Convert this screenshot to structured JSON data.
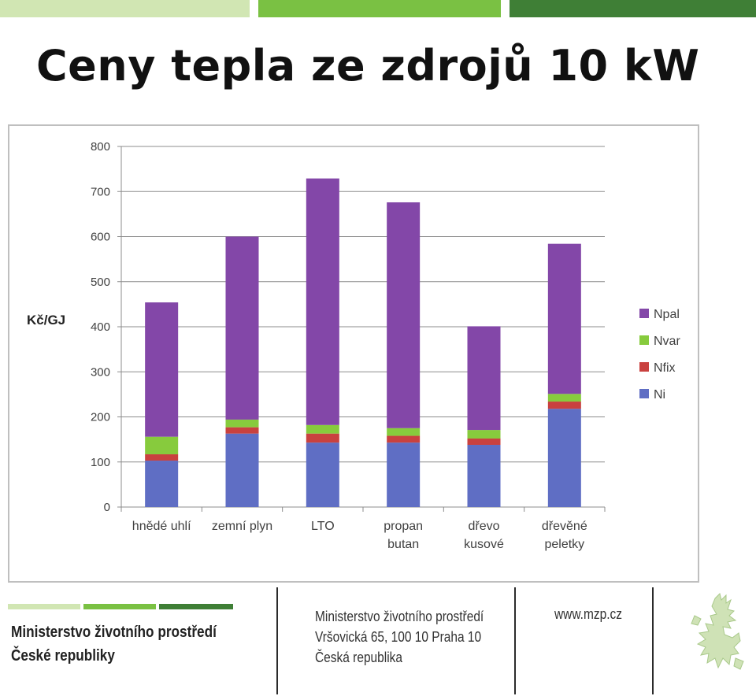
{
  "page": {
    "title": "Ceny tepla ze zdrojů 10 kW"
  },
  "colors": {
    "Npal": "#8347a8",
    "Nvar": "#87cb3d",
    "Nfix": "#c9413f",
    "Ni": "#5f6ec4",
    "stripe_light": "#d1e6b3",
    "stripe_mid": "#7ac143",
    "stripe_dark": "#3f7f36"
  },
  "chart_data": {
    "type": "bar",
    "stacked": true,
    "ylabel": "Kč/GJ",
    "ylim": [
      0,
      800
    ],
    "yticks": [
      0,
      100,
      200,
      300,
      400,
      500,
      600,
      700,
      800
    ],
    "grid": true,
    "legend_position": "right",
    "categories": [
      [
        "hnědé uhlí"
      ],
      [
        "zemní plyn"
      ],
      [
        "LTO"
      ],
      [
        "propan",
        "butan"
      ],
      [
        "dřevo",
        "kusové"
      ],
      [
        "dřevěné",
        "peletky"
      ]
    ],
    "series": [
      {
        "name": "Ni",
        "values": [
          103,
          163,
          143,
          143,
          138,
          218
        ]
      },
      {
        "name": "Nfix",
        "values": [
          14,
          14,
          20,
          15,
          14,
          16
        ]
      },
      {
        "name": "Nvar",
        "values": [
          39,
          17,
          19,
          17,
          19,
          17
        ]
      },
      {
        "name": "Npal",
        "values": [
          298,
          406,
          547,
          501,
          230,
          333
        ]
      }
    ],
    "legend_order": [
      "Npal",
      "Nvar",
      "Nfix",
      "Ni"
    ]
  },
  "footer": {
    "ministry_lines": [
      "Ministerstvo životního prostředí",
      "České republiky"
    ],
    "address_lines": [
      "Ministerstvo životního prostředí",
      "Vršovická 65, 100 10  Praha 10",
      "Česká republika"
    ],
    "website": "www.mzp.cz",
    "emblem_icon": "czech-lion-icon"
  }
}
